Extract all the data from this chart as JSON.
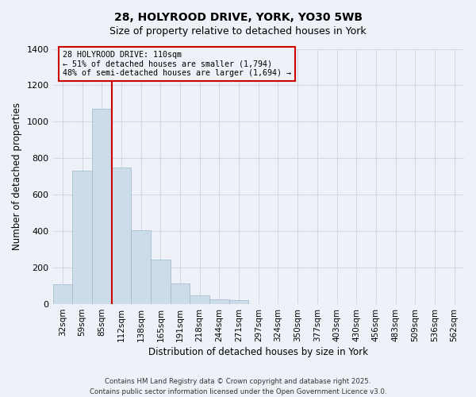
{
  "title": "28, HOLYROOD DRIVE, YORK, YO30 5WB",
  "subtitle": "Size of property relative to detached houses in York",
  "xlabel": "Distribution of detached houses by size in York",
  "ylabel": "Number of detached properties",
  "categories": [
    "32sqm",
    "59sqm",
    "85sqm",
    "112sqm",
    "138sqm",
    "165sqm",
    "191sqm",
    "218sqm",
    "244sqm",
    "271sqm",
    "297sqm",
    "324sqm",
    "350sqm",
    "377sqm",
    "403sqm",
    "430sqm",
    "456sqm",
    "483sqm",
    "509sqm",
    "536sqm",
    "562sqm"
  ],
  "values": [
    110,
    730,
    1070,
    750,
    405,
    245,
    115,
    50,
    28,
    20,
    0,
    0,
    0,
    0,
    0,
    0,
    0,
    0,
    0,
    0,
    0
  ],
  "bar_color": "#ccdce8",
  "bar_edge_color": "#9ab8cc",
  "ylim": [
    0,
    1400
  ],
  "yticks": [
    0,
    200,
    400,
    600,
    800,
    1000,
    1200,
    1400
  ],
  "marker_line_index": 3,
  "marker_label": "28 HOLYROOD DRIVE: 110sqm",
  "annotation_line1": "← 51% of detached houses are smaller (1,794)",
  "annotation_line2": "48% of semi-detached houses are larger (1,694) →",
  "marker_color": "#cc0000",
  "box_edge_color": "#cc0000",
  "background_color": "#eef2f8",
  "grid_color": "#d0d8e8",
  "footer1": "Contains HM Land Registry data © Crown copyright and database right 2025.",
  "footer2": "Contains public sector information licensed under the Open Government Licence v3.0."
}
